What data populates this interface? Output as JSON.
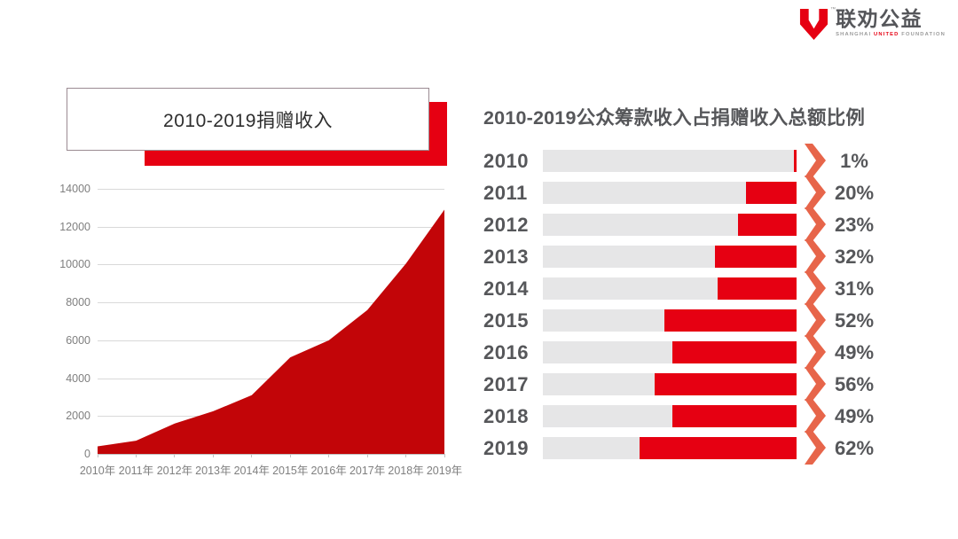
{
  "logo": {
    "cn": "联劝公益",
    "tm": "™",
    "en_parts": [
      "SHANGHAI",
      "UNITED",
      "FOUNDATION"
    ],
    "brand_red": "#e60012"
  },
  "chart_data": [
    {
      "type": "area",
      "title": "2010-2019捐赠收入",
      "categories": [
        "2010年",
        "2011年",
        "2012年",
        "2013年",
        "2014年",
        "2015年",
        "2016年",
        "2017年",
        "2018年",
        "2019年"
      ],
      "values": [
        400,
        700,
        1600,
        2250,
        3100,
        5100,
        6000,
        7600,
        10050,
        12900
      ],
      "ylim": [
        0,
        14000
      ],
      "yticks": [
        14000,
        12000,
        10000,
        8000,
        6000,
        4000,
        2000,
        0
      ],
      "grid": true,
      "legend": "none",
      "fill_color": "#c20508",
      "axis_label_color": "#7f7f7f"
    },
    {
      "type": "bar",
      "orientation": "horizontal-right-aligned",
      "title": "2010-2019公众筹款收入占捐赠收入总额比例",
      "categories": [
        "2010",
        "2011",
        "2012",
        "2013",
        "2014",
        "2015",
        "2016",
        "2017",
        "2018",
        "2019"
      ],
      "values": [
        1,
        20,
        23,
        32,
        31,
        52,
        49,
        56,
        49,
        62
      ],
      "value_labels": [
        "1%",
        "20%",
        "23%",
        "32%",
        "31%",
        "52%",
        "49%",
        "56%",
        "49%",
        "62%"
      ],
      "xlim": [
        0,
        100
      ],
      "bar_color": "#e60012",
      "track_color": "#e6e6e7",
      "arrow_color": "#e7654a",
      "label_color": "#56575a",
      "legend": "none"
    }
  ],
  "title_backdrop_color": "#e60012"
}
